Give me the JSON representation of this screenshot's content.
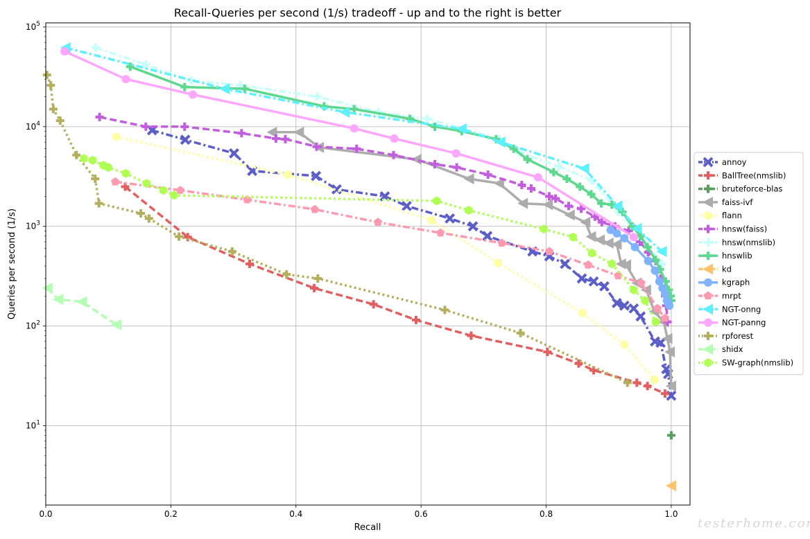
{
  "chart_data": {
    "type": "line",
    "title": "Recall-Queries per second (1/s) tradeoff - up and to the right is better",
    "xlabel": "Recall",
    "ylabel": "Queries per second (1/s)",
    "xlim": [
      0.0,
      1.03
    ],
    "ylim": [
      1.6,
      110000
    ],
    "yscale": "log",
    "grid": true,
    "legend_position": "center-right",
    "x_ticks": [
      "0.0",
      "0.2",
      "0.4",
      "0.6",
      "0.8",
      "1.0"
    ],
    "y_ticks": [
      {
        "value": 10,
        "base": "10",
        "exp": "1"
      },
      {
        "value": 100,
        "base": "10",
        "exp": "2"
      },
      {
        "value": 1000,
        "base": "10",
        "exp": "3"
      },
      {
        "value": 10000,
        "base": "10",
        "exp": "4"
      },
      {
        "value": 100000,
        "base": "10",
        "exp": "5"
      }
    ],
    "series": [
      {
        "name": "annoy",
        "color": "#5c5ec8",
        "dash": "dashdot",
        "marker": "x",
        "x": [
          0.17,
          0.223,
          0.301,
          0.33,
          0.432,
          0.465,
          0.542,
          0.577,
          0.646,
          0.683,
          0.706,
          0.778,
          0.805,
          0.83,
          0.857,
          0.876,
          0.893,
          0.913,
          0.925,
          0.94,
          0.951,
          0.974,
          0.983,
          0.992,
          0.995,
          1.0
        ],
        "y": [
          9200,
          7400,
          5400,
          3600,
          3200,
          2350,
          2000,
          1600,
          1200,
          1000,
          800,
          560,
          500,
          420,
          300,
          280,
          250,
          170,
          160,
          150,
          125,
          70,
          68,
          37,
          33,
          20
        ]
      },
      {
        "name": "BallTree(nmslib)",
        "color": "#e25f5f",
        "dash": "dash",
        "marker": "plus",
        "x": [
          0.127,
          0.227,
          0.326,
          0.429,
          0.524,
          0.592,
          0.68,
          0.802,
          0.852,
          0.876,
          0.945,
          0.962,
          0.99
        ],
        "y": [
          2500,
          780,
          420,
          240,
          165,
          115,
          80,
          55,
          42,
          36,
          27,
          25,
          21
        ]
      },
      {
        "name": "bruteforce-blas",
        "color": "#579e60",
        "dash": "dash",
        "marker": "plus",
        "x": [
          1.0
        ],
        "y": [
          8
        ]
      },
      {
        "name": "faiss-ivf",
        "color": "#acacac",
        "dash": "solid",
        "marker": "tri-left",
        "x": [
          0.362,
          0.405,
          0.437,
          0.593,
          0.677,
          0.725,
          0.763,
          0.803,
          0.838,
          0.863,
          0.872,
          0.886,
          0.9,
          0.913,
          0.92,
          0.928,
          0.945,
          0.96,
          0.973,
          0.988,
          0.994,
          0.998,
          1.0
        ],
        "y": [
          8800,
          8800,
          6200,
          4700,
          3000,
          2700,
          1700,
          1650,
          1300,
          1100,
          790,
          730,
          680,
          660,
          420,
          410,
          270,
          230,
          140,
          110,
          75,
          55,
          25
        ]
      },
      {
        "name": "flann",
        "color": "#feffa5",
        "dash": "dot",
        "marker": "circle",
        "x": [
          0.113,
          0.387,
          0.617,
          0.723,
          0.858,
          0.925,
          0.973
        ],
        "y": [
          7900,
          3300,
          1150,
          430,
          135,
          65,
          29
        ]
      },
      {
        "name": "hnsw(faiss)",
        "color": "#c35de0",
        "dash": "dash",
        "marker": "plus",
        "x": [
          0.086,
          0.16,
          0.222,
          0.313,
          0.368,
          0.383,
          0.433,
          0.497,
          0.556,
          0.622,
          0.657,
          0.707,
          0.761,
          0.776,
          0.805,
          0.815,
          0.836,
          0.856,
          0.878,
          0.889,
          0.91,
          0.932,
          0.95,
          0.963,
          0.975,
          0.983,
          0.99,
          0.992,
          0.994
        ],
        "y": [
          12500,
          10000,
          10000,
          8600,
          7600,
          7500,
          6300,
          6000,
          5200,
          4200,
          3900,
          3300,
          2600,
          2400,
          2000,
          1900,
          1600,
          1500,
          1250,
          1100,
          1000,
          900,
          700,
          550,
          450,
          300,
          200,
          160,
          110
        ]
      },
      {
        "name": "hnsw(nmslib)",
        "color": "#c7fffa",
        "dash": "dashdot",
        "marker": "plus",
        "x": [
          0.08,
          0.16,
          0.232,
          0.311,
          0.434,
          0.532,
          0.61,
          0.725,
          0.758,
          0.82,
          0.873,
          0.915,
          0.953,
          0.985
        ],
        "y": [
          62000,
          42000,
          29000,
          26000,
          20000,
          14000,
          12000,
          7500,
          5500,
          4000,
          2900,
          1400,
          780,
          420
        ]
      },
      {
        "name": "hnswlib",
        "color": "#5dd88e",
        "dash": "solid",
        "marker": "plus",
        "x": [
          0.135,
          0.222,
          0.318,
          0.445,
          0.493,
          0.582,
          0.622,
          0.665,
          0.72,
          0.748,
          0.77,
          0.812,
          0.833,
          0.854,
          0.872,
          0.888,
          0.905,
          0.922,
          0.938,
          0.951,
          0.962,
          0.975,
          0.982,
          0.991,
          0.996,
          0.999,
          1.0
        ],
        "y": [
          40000,
          25000,
          24000,
          16000,
          15000,
          12000,
          10000,
          9000,
          7500,
          6000,
          4700,
          3500,
          3000,
          2500,
          2100,
          1700,
          1650,
          1400,
          1000,
          800,
          620,
          460,
          370,
          280,
          230,
          200,
          180
        ]
      },
      {
        "name": "kd",
        "color": "#ffc46b",
        "dash": "dash",
        "marker": "tri-left",
        "x": [
          1.0
        ],
        "y": [
          2.5
        ]
      },
      {
        "name": "kgraph",
        "color": "#7fb3ff",
        "dash": "solid",
        "marker": "circle",
        "x": [
          0.903,
          0.913,
          0.925,
          0.942,
          0.963,
          0.974,
          0.981,
          0.986,
          0.99,
          0.993,
          0.995,
          0.997
        ],
        "y": [
          920,
          850,
          760,
          620,
          450,
          360,
          280,
          240,
          210,
          180,
          170,
          160
        ]
      },
      {
        "name": "mrpt",
        "color": "#ff9ab0",
        "dash": "dashdot",
        "marker": "pentagon",
        "x": [
          0.111,
          0.215,
          0.322,
          0.43,
          0.531,
          0.631,
          0.729,
          0.805,
          0.867,
          0.915,
          0.952,
          0.978,
          0.99
        ],
        "y": [
          2800,
          2300,
          1850,
          1480,
          1100,
          860,
          680,
          560,
          410,
          320,
          270,
          150,
          120
        ]
      },
      {
        "name": "NGT-onng",
        "color": "#5ff0ff",
        "dash": "dashdot",
        "marker": "tri-left",
        "x": [
          0.032,
          0.286,
          0.478,
          0.665,
          0.727,
          0.861,
          0.914,
          0.945,
          0.985
        ],
        "y": [
          62000,
          24000,
          14000,
          9500,
          7000,
          3800,
          1600,
          950,
          560
        ]
      },
      {
        "name": "NGT-panng",
        "color": "#ffa6ff",
        "dash": "solid",
        "marker": "circle",
        "x": [
          0.03,
          0.128,
          0.235,
          0.493,
          0.557,
          0.656,
          0.787,
          0.94
        ],
        "y": [
          57000,
          30000,
          21000,
          9600,
          7600,
          5400,
          3100,
          780
        ]
      },
      {
        "name": "rpforest",
        "color": "#b3af5d",
        "dash": "dot",
        "marker": "plus",
        "x": [
          0.002,
          0.008,
          0.012,
          0.023,
          0.049,
          0.079,
          0.085,
          0.152,
          0.165,
          0.213,
          0.298,
          0.385,
          0.435,
          0.638,
          0.759,
          0.93
        ],
        "y": [
          33000,
          26000,
          15000,
          11500,
          5200,
          3000,
          1700,
          1350,
          1200,
          790,
          560,
          330,
          300,
          145,
          85,
          27
        ]
      },
      {
        "name": "shidx",
        "color": "#b3ffb3",
        "dash": "dash",
        "marker": "tri-left",
        "x": [
          0.003,
          0.02,
          0.058,
          0.113
        ],
        "y": [
          240,
          185,
          175,
          103
        ]
      },
      {
        "name": "SW-graph(nmslib)",
        "color": "#afff55",
        "dash": "dot",
        "marker": "hexagon",
        "x": [
          0.061,
          0.075,
          0.092,
          0.1,
          0.128,
          0.161,
          0.188,
          0.205,
          0.625,
          0.676,
          0.796,
          0.843,
          0.873,
          0.905,
          0.94,
          0.958,
          0.975
        ],
        "y": [
          4800,
          4600,
          4100,
          3900,
          3400,
          2700,
          2300,
          2050,
          1800,
          1450,
          940,
          780,
          540,
          420,
          230,
          180,
          110
        ]
      }
    ]
  },
  "watermark": "testerhome.com"
}
